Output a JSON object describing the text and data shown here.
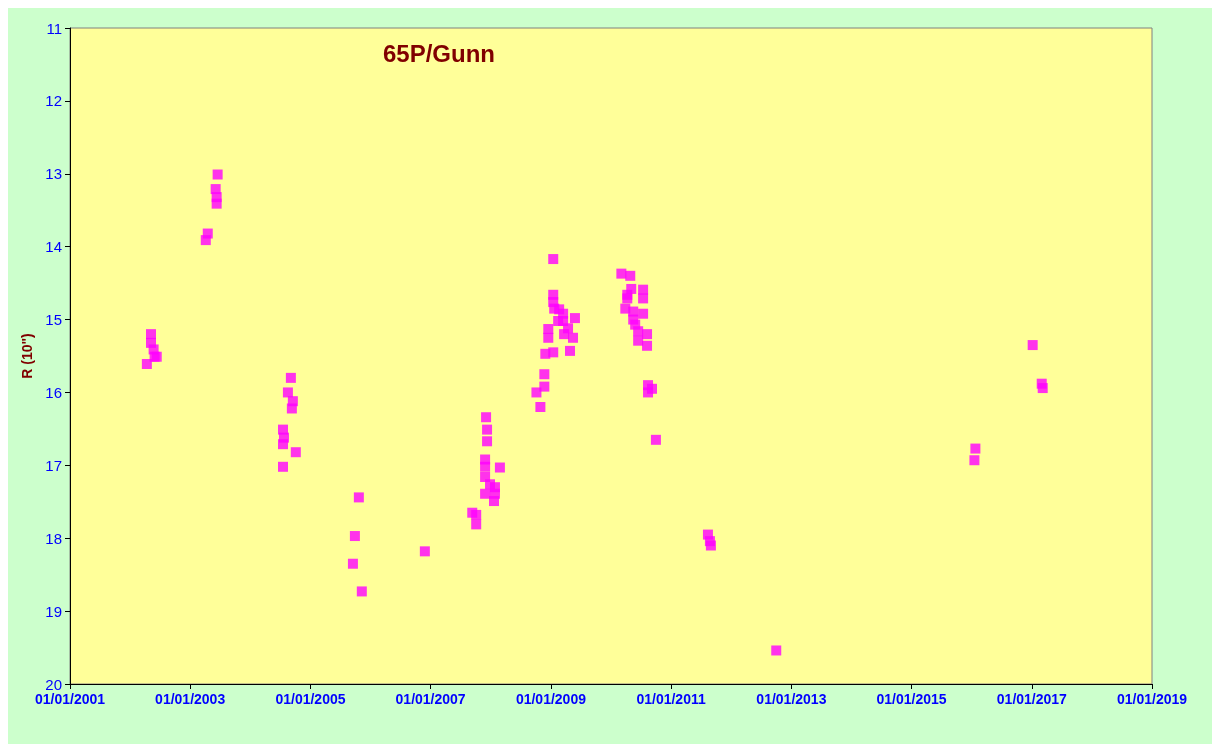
{
  "chart_data": {
    "type": "scatter",
    "title": "65P/Gunn",
    "ylabel": "R (10\")",
    "marker": "square",
    "grid": false,
    "x": [
      "2002-04-13",
      "2002-05-08",
      "2002-05-08",
      "2002-05-24",
      "2002-05-30",
      "2002-06-12",
      "2003-04-06",
      "2003-04-18",
      "2003-06-05",
      "2003-06-11",
      "2003-06-17",
      "2003-06-11",
      "2004-07-18",
      "2004-07-24",
      "2004-07-18",
      "2004-07-18",
      "2004-08-17",
      "2004-09-04",
      "2004-09-16",
      "2004-09-10",
      "2004-10-04",
      "2005-09-16",
      "2005-09-28",
      "2005-10-22",
      "2005-11-09",
      "2006-11-27",
      "2007-09-11",
      "2007-10-05",
      "2007-10-05",
      "2007-11-28",
      "2007-11-28",
      "2007-11-28",
      "2007-11-28",
      "2007-12-04",
      "2007-12-10",
      "2007-12-10",
      "2007-12-28",
      "2008-01-21",
      "2008-01-27",
      "2008-01-27",
      "2008-02-26",
      "2008-10-05",
      "2008-10-29",
      "2008-11-22",
      "2008-11-22",
      "2008-11-28",
      "2008-12-16",
      "2008-12-16",
      "2009-01-15",
      "2009-01-15",
      "2009-01-15",
      "2009-01-15",
      "2009-01-21",
      "2009-02-14",
      "2009-02-20",
      "2009-03-16",
      "2009-03-16",
      "2009-03-22",
      "2009-04-15",
      "2009-04-27",
      "2009-05-15",
      "2009-05-27",
      "2010-03-05",
      "2010-03-29",
      "2010-04-10",
      "2010-04-10",
      "2010-04-28",
      "2010-05-04",
      "2010-05-16",
      "2010-05-16",
      "2010-05-28",
      "2010-06-15",
      "2010-06-15",
      "2010-07-15",
      "2010-07-15",
      "2010-07-15",
      "2010-08-08",
      "2010-08-08",
      "2010-08-14",
      "2010-08-14",
      "2010-09-07",
      "2010-10-01",
      "2011-08-13",
      "2011-08-25",
      "2011-08-31",
      "2012-10-01",
      "2016-01-18",
      "2016-01-24",
      "2017-01-06",
      "2017-03-02",
      "2017-03-08"
    ],
    "series": [
      {
        "color": "#ff00ff",
        "values": [
          15.61,
          15.2,
          15.32,
          15.41,
          15.51,
          15.51,
          13.91,
          13.82,
          13.21,
          13.41,
          13.01,
          13.32,
          16.51,
          16.62,
          16.71,
          17.02,
          16.0,
          15.8,
          16.12,
          16.22,
          16.82,
          18.35,
          17.97,
          17.44,
          18.73,
          18.18,
          17.65,
          17.68,
          17.81,
          16.92,
          17.02,
          17.16,
          17.39,
          16.34,
          16.51,
          16.67,
          17.26,
          17.49,
          17.3,
          17.39,
          17.03,
          16.0,
          16.2,
          15.75,
          15.92,
          15.47,
          15.13,
          15.25,
          14.17,
          14.66,
          14.76,
          15.45,
          14.85,
          15.02,
          14.86,
          14.92,
          15.02,
          15.2,
          15.12,
          15.43,
          15.25,
          14.98,
          14.37,
          14.85,
          14.66,
          14.71,
          14.4,
          14.58,
          14.89,
          15.0,
          15.07,
          15.16,
          15.29,
          14.59,
          14.71,
          14.92,
          15.2,
          15.36,
          15.9,
          16.0,
          15.95,
          16.65,
          17.95,
          18.04,
          18.1,
          19.54,
          16.93,
          16.77,
          15.35,
          15.88,
          15.94
        ]
      }
    ],
    "xlim": [
      "2001-01-01",
      "2019-01-01"
    ],
    "xticks": [
      {
        "value": "2001-01-01",
        "label": "01/01/2001"
      },
      {
        "value": "2003-01-01",
        "label": "01/01/2003"
      },
      {
        "value": "2005-01-01",
        "label": "01/01/2005"
      },
      {
        "value": "2007-01-01",
        "label": "01/01/2007"
      },
      {
        "value": "2009-01-01",
        "label": "01/01/2009"
      },
      {
        "value": "2011-01-01",
        "label": "01/01/2011"
      },
      {
        "value": "2013-01-01",
        "label": "01/01/2013"
      },
      {
        "value": "2015-01-01",
        "label": "01/01/2015"
      },
      {
        "value": "2017-01-01",
        "label": "01/01/2017"
      },
      {
        "value": "2019-01-01",
        "label": "01/01/2019"
      }
    ],
    "ylim": [
      20,
      11
    ],
    "yticks": [
      11,
      12,
      13,
      14,
      15,
      16,
      17,
      18,
      19,
      20
    ]
  }
}
